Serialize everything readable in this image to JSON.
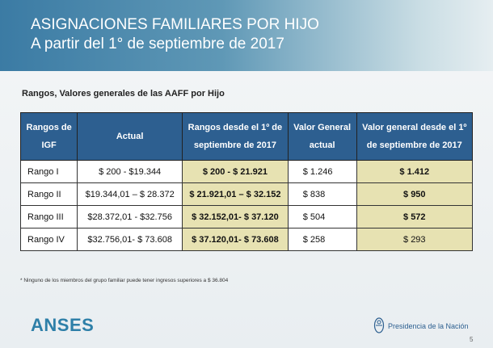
{
  "header": {
    "title": "ASIGNACIONES FAMILIARES POR HIJO",
    "subtitle": "A partir del 1° de septiembre de 2017"
  },
  "section_title": "Rangos, Valores generales de las AAFF por Hijo",
  "table": {
    "columns": [
      "Rangos de IGF",
      "Actual",
      "Rangos desde el 1º de septiembre de 2017",
      "Valor General actual",
      "Valor general desde el 1º de septiembre de 2017"
    ],
    "rows": [
      [
        "Rango I",
        "$ 200 - $19.344",
        "$ 200 - $ 21.921",
        "$ 1.246",
        "$ 1.412"
      ],
      [
        "Rango II",
        "$19.344,01 – $ 28.372",
        "$ 21.921,01 – $ 32.152",
        "$ 838",
        "$ 950"
      ],
      [
        "Rango III",
        "$28.372,01 - $32.756",
        "$ 32.152,01- $ 37.120",
        "$ 504",
        "$ 572"
      ],
      [
        "Rango IV",
        "$32.756,01- $ 73.608",
        "$ 37.120,01- $ 73.608",
        "$ 258",
        "$ 293"
      ]
    ]
  },
  "footnote": "* Ninguno de los miembros del grupo familiar puede tener ingresos superiores a $ 36.804",
  "footer": {
    "logo": "ANSES",
    "right": "Presidencia de la Nación",
    "page": "5"
  }
}
